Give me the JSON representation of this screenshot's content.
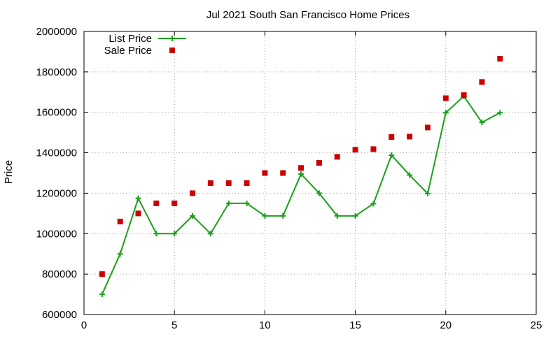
{
  "chart_data": {
    "type": "line",
    "title": "Jul 2021 South San Francisco Home Prices",
    "xlabel": "",
    "ylabel": "Price",
    "xlim": [
      0,
      25
    ],
    "ylim": [
      600000,
      2000000
    ],
    "x_ticks": [
      "0",
      "5",
      "10",
      "15",
      "20",
      "25"
    ],
    "y_ticks": [
      "600000",
      "800000",
      "1000000",
      "1200000",
      "1400000",
      "1600000",
      "1800000",
      "2000000"
    ],
    "grid": true,
    "legend_position": "top-left",
    "series": [
      {
        "name": "List Price",
        "kind": "line-with-plus-markers",
        "color": "#1aa01a",
        "x": [
          1,
          2,
          3,
          4,
          5,
          6,
          7,
          8,
          9,
          10,
          11,
          12,
          13,
          14,
          15,
          16,
          17,
          18,
          19,
          20,
          21,
          22,
          23
        ],
        "y": [
          700000,
          900000,
          1175000,
          1000000,
          1000000,
          1088000,
          1000000,
          1150000,
          1150000,
          1088000,
          1088000,
          1295000,
          1200000,
          1088000,
          1088000,
          1148000,
          1388000,
          1290000,
          1198000,
          1598000,
          1680000,
          1550000,
          1598000
        ]
      },
      {
        "name": "Sale Price",
        "kind": "square-markers",
        "color": "#cc0000",
        "x": [
          1,
          2,
          3,
          4,
          5,
          6,
          7,
          8,
          9,
          10,
          11,
          12,
          13,
          14,
          15,
          16,
          17,
          18,
          19,
          20,
          21,
          22,
          23
        ],
        "y": [
          800000,
          1060000,
          1100000,
          1150000,
          1150000,
          1200000,
          1250000,
          1250000,
          1250000,
          1300000,
          1300000,
          1325000,
          1350000,
          1380000,
          1415000,
          1418000,
          1478000,
          1480000,
          1525000,
          1670000,
          1685000,
          1750000,
          1865000
        ]
      }
    ]
  }
}
